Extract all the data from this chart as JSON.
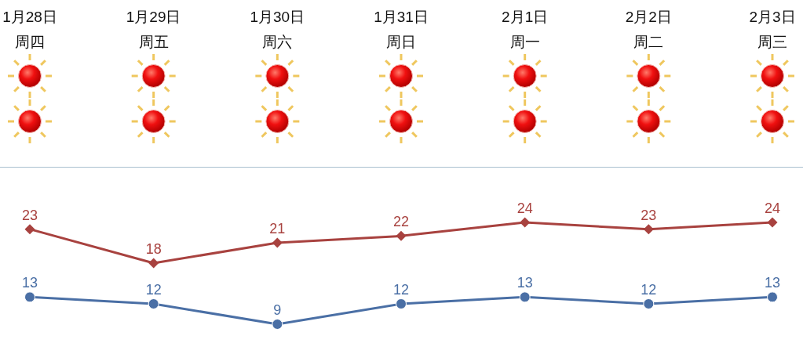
{
  "chart_data": {
    "type": "line",
    "categories": [
      "1月28日周四",
      "1月29日周五",
      "1月30日周六",
      "1月31日周日",
      "2月1日周一",
      "2月2日周二",
      "2月3日周三"
    ],
    "series": [
      {
        "color": "#a8423f",
        "marker": "diamond",
        "values": [
          23,
          18,
          21,
          22,
          24,
          23,
          24
        ]
      },
      {
        "color": "#4a6fa5",
        "marker": "circle",
        "values": [
          13,
          12,
          9,
          12,
          13,
          12,
          13
        ]
      }
    ],
    "data_labels": true
  }
}
